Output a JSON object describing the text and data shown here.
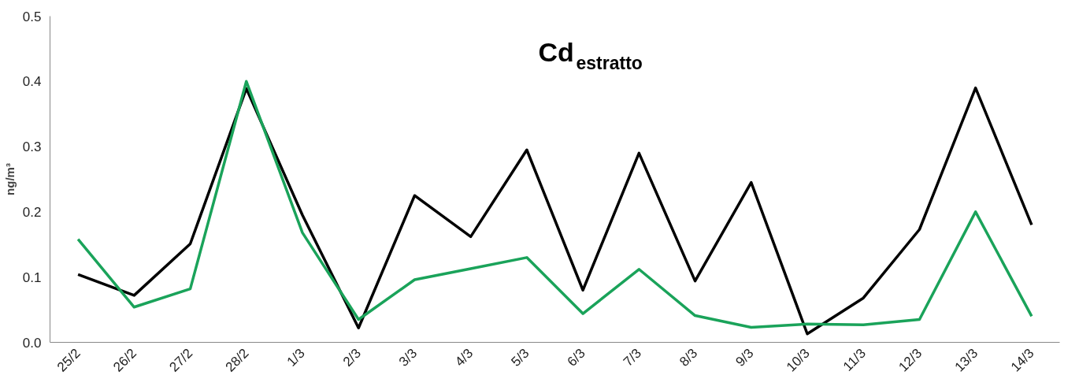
{
  "chart_data": {
    "type": "line",
    "title": "Cd$_{estratto}$",
    "ylabel": "ng/m³",
    "categories": [
      "25/2",
      "26/2",
      "27/2",
      "28/2",
      "1/3",
      "2/3",
      "3/3",
      "4/3",
      "5/3",
      "6/3",
      "7/3",
      "8/3",
      "9/3",
      "10/3",
      "11/3",
      "12/3",
      "13/3",
      "14/3"
    ],
    "series": [
      {
        "color": "#000000",
        "values": [
          0.104,
          0.072,
          0.151,
          0.389,
          0.195,
          0.022,
          0.225,
          0.162,
          0.295,
          0.08,
          0.29,
          0.094,
          0.245,
          0.013,
          0.068,
          0.173,
          0.39,
          0.18
        ]
      },
      {
        "color": "#1aa35a",
        "values": [
          0.158,
          0.054,
          0.082,
          0.4,
          0.168,
          0.035,
          0.096,
          0.113,
          0.13,
          0.044,
          0.112,
          0.041,
          0.023,
          0.028,
          0.027,
          0.035,
          0.2,
          0.04
        ]
      }
    ],
    "ylim": [
      0,
      0.5
    ],
    "yticks": [
      {
        "value": 0,
        "label": "0.0"
      },
      0.1,
      0.2,
      0.3,
      0.4,
      0.5
    ],
    "grid": false,
    "marker": "none",
    "line_style": "solid"
  }
}
